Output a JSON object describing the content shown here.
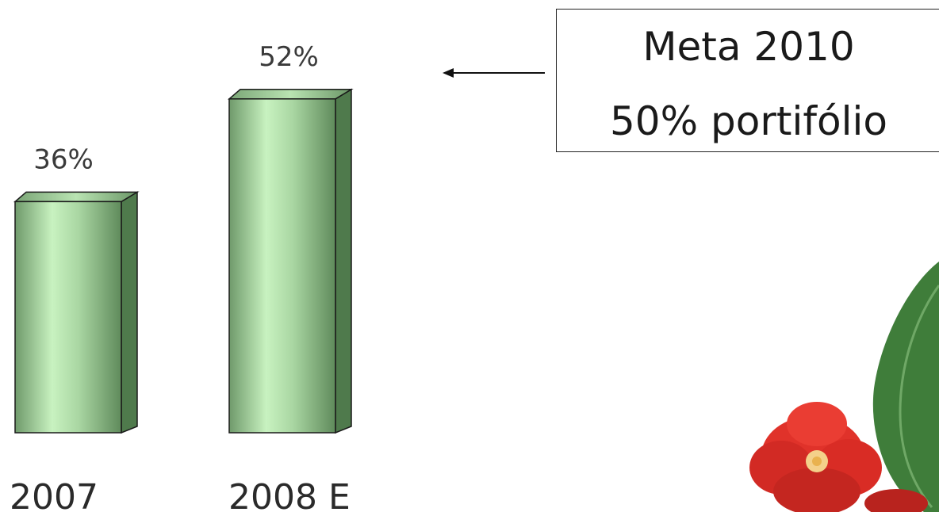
{
  "chart_data": {
    "type": "bar",
    "categories": [
      "2007",
      "2008 E"
    ],
    "values": [
      36,
      52
    ],
    "value_labels": [
      "36%",
      "52%"
    ],
    "ylim": [
      0,
      60
    ],
    "grid": false,
    "legend": "none",
    "bar_color": "#8fbf88"
  },
  "callout": {
    "line1": "Meta 2010",
    "line2": "50% portifólio"
  },
  "colors": {
    "bar_light": "#c8f2c0",
    "bar_mid": "#8fb98a",
    "bar_dark": "#4f7a4c",
    "flower": "#e0322a",
    "leaf": "#3f7d3a"
  }
}
